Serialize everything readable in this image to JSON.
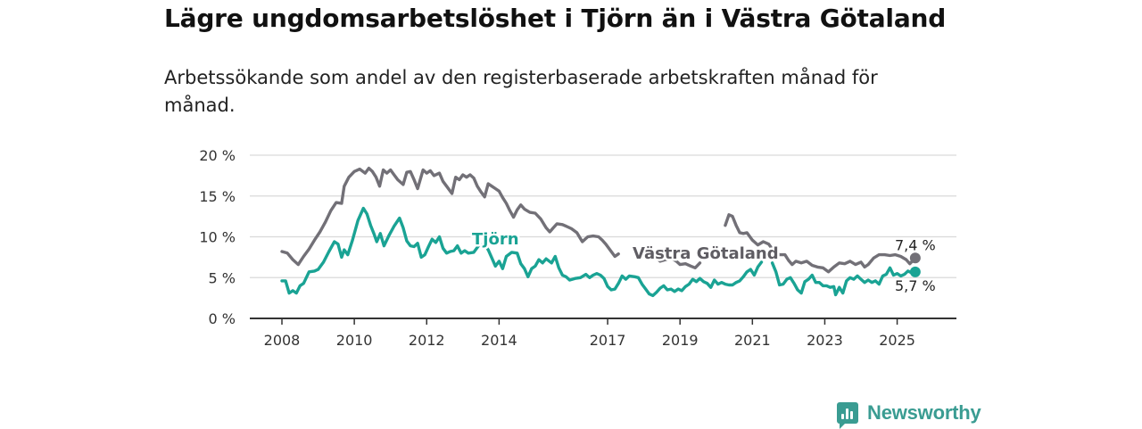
{
  "title": "Lägre ungdomsarbetslöshet i Tjörn än i Västra Götaland",
  "subtitle": "Arbetssökande som andel av den registerbaserade arbetskraften månad för månad.",
  "brand": "Newsworthy",
  "colors": {
    "vg": "#727077",
    "tjorn": "#1aa394",
    "grid": "#d9d9d9",
    "axis": "#333333"
  },
  "chart_data": {
    "type": "line",
    "title": "Lägre ungdomsarbetslöshet i Tjörn än i Västra Götaland",
    "subtitle": "Arbetssökande som andel av den registerbaserade arbetskraften månad för månad.",
    "xlabel": "",
    "ylabel": "",
    "x_range": [
      2008.0,
      2025.75
    ],
    "ylim": [
      0,
      20
    ],
    "y_ticks": [
      0,
      5,
      10,
      15,
      20
    ],
    "y_tick_labels": [
      "0 %",
      "5 %",
      "10 %",
      "15 %",
      "20 %"
    ],
    "x_ticks": [
      2008,
      2010,
      2012,
      2014,
      2017,
      2019,
      2021,
      2023,
      2025
    ],
    "x_tick_labels": [
      "2008",
      "2010",
      "2012",
      "2014",
      "2017",
      "2019",
      "2021",
      "2023",
      "2025"
    ],
    "grid": true,
    "series": [
      {
        "name": "Västra Götaland",
        "color": "#727077",
        "end_label": "7,4 %",
        "points": [
          [
            2008.0,
            8.2
          ],
          [
            2008.15,
            8.0
          ],
          [
            2008.3,
            7.2
          ],
          [
            2008.45,
            6.6
          ],
          [
            2008.6,
            7.6
          ],
          [
            2008.75,
            8.5
          ],
          [
            2008.9,
            9.6
          ],
          [
            2009.05,
            10.6
          ],
          [
            2009.2,
            11.8
          ],
          [
            2009.35,
            13.2
          ],
          [
            2009.5,
            14.2
          ],
          [
            2009.65,
            14.1
          ],
          [
            2009.72,
            16.2
          ],
          [
            2009.85,
            17.3
          ],
          [
            2010.0,
            18.0
          ],
          [
            2010.15,
            18.3
          ],
          [
            2010.3,
            17.8
          ],
          [
            2010.4,
            18.4
          ],
          [
            2010.5,
            18.0
          ],
          [
            2010.6,
            17.3
          ],
          [
            2010.7,
            16.2
          ],
          [
            2010.8,
            18.2
          ],
          [
            2010.9,
            17.8
          ],
          [
            2011.0,
            18.2
          ],
          [
            2011.1,
            17.6
          ],
          [
            2011.2,
            17.0
          ],
          [
            2011.35,
            16.4
          ],
          [
            2011.45,
            17.9
          ],
          [
            2011.55,
            18.0
          ],
          [
            2011.65,
            17.0
          ],
          [
            2011.75,
            15.9
          ],
          [
            2011.9,
            18.2
          ],
          [
            2012.0,
            17.8
          ],
          [
            2012.1,
            18.1
          ],
          [
            2012.2,
            17.5
          ],
          [
            2012.35,
            17.8
          ],
          [
            2012.45,
            16.8
          ],
          [
            2012.55,
            16.2
          ],
          [
            2012.7,
            15.3
          ],
          [
            2012.8,
            17.3
          ],
          [
            2012.9,
            17.0
          ],
          [
            2013.0,
            17.6
          ],
          [
            2013.1,
            17.3
          ],
          [
            2013.2,
            17.6
          ],
          [
            2013.3,
            17.2
          ],
          [
            2013.4,
            16.2
          ],
          [
            2013.5,
            15.5
          ],
          [
            2013.6,
            14.9
          ],
          [
            2013.7,
            16.5
          ],
          [
            2013.8,
            16.2
          ],
          [
            2013.9,
            15.9
          ],
          [
            2014.0,
            15.6
          ],
          [
            2014.1,
            14.8
          ],
          [
            2014.2,
            14.1
          ],
          [
            2014.3,
            13.2
          ],
          [
            2014.4,
            12.4
          ],
          [
            2014.5,
            13.3
          ],
          [
            2014.6,
            13.9
          ],
          [
            2014.7,
            13.4
          ],
          [
            2014.85,
            13.0
          ],
          [
            2015.0,
            12.9
          ],
          [
            2015.15,
            12.2
          ],
          [
            2015.3,
            11.1
          ],
          [
            2015.4,
            10.6
          ],
          [
            2015.5,
            11.1
          ],
          [
            2015.6,
            11.6
          ],
          [
            2015.75,
            11.5
          ],
          [
            2015.9,
            11.2
          ],
          [
            2016.0,
            11.0
          ],
          [
            2016.15,
            10.5
          ],
          [
            2016.3,
            9.4
          ],
          [
            2016.45,
            10.0
          ],
          [
            2016.6,
            10.1
          ],
          [
            2016.75,
            10.0
          ],
          [
            2016.85,
            9.6
          ],
          [
            2016.95,
            9.1
          ],
          [
            2017.1,
            8.2
          ],
          [
            2017.2,
            7.6
          ],
          [
            2017.3,
            7.9
          ]
        ],
        "points_b": [
          [
            2018.3,
            7.6
          ],
          [
            2018.45,
            7.0
          ],
          [
            2018.6,
            7.2
          ],
          [
            2018.75,
            7.4
          ],
          [
            2018.9,
            7.0
          ],
          [
            2019.0,
            6.6
          ],
          [
            2019.15,
            6.7
          ],
          [
            2019.3,
            6.4
          ],
          [
            2019.42,
            6.2
          ],
          [
            2019.55,
            6.8
          ]
        ],
        "points_c": [
          [
            2020.25,
            11.4
          ],
          [
            2020.35,
            12.7
          ],
          [
            2020.45,
            12.5
          ],
          [
            2020.55,
            11.4
          ],
          [
            2020.65,
            10.5
          ],
          [
            2020.75,
            10.4
          ],
          [
            2020.85,
            10.5
          ],
          [
            2021.0,
            9.6
          ],
          [
            2021.15,
            9.0
          ],
          [
            2021.3,
            9.4
          ],
          [
            2021.45,
            9.1
          ],
          [
            2021.6,
            8.2
          ],
          [
            2021.75,
            7.8
          ],
          [
            2021.9,
            7.8
          ],
          [
            2022.0,
            7.1
          ],
          [
            2022.1,
            6.6
          ],
          [
            2022.2,
            7.0
          ],
          [
            2022.35,
            6.8
          ],
          [
            2022.5,
            7.0
          ],
          [
            2022.65,
            6.5
          ],
          [
            2022.8,
            6.3
          ],
          [
            2022.95,
            6.2
          ],
          [
            2023.1,
            5.7
          ],
          [
            2023.25,
            6.3
          ],
          [
            2023.4,
            6.8
          ],
          [
            2023.55,
            6.7
          ],
          [
            2023.7,
            7.0
          ],
          [
            2023.85,
            6.6
          ],
          [
            2024.0,
            6.9
          ],
          [
            2024.1,
            6.3
          ],
          [
            2024.2,
            6.6
          ],
          [
            2024.35,
            7.4
          ],
          [
            2024.5,
            7.8
          ],
          [
            2024.65,
            7.8
          ],
          [
            2024.8,
            7.7
          ],
          [
            2024.95,
            7.8
          ],
          [
            2025.1,
            7.6
          ],
          [
            2025.25,
            7.2
          ],
          [
            2025.35,
            6.7
          ],
          [
            2025.5,
            7.4
          ]
        ]
      },
      {
        "name": "Tjörn",
        "color": "#1aa394",
        "end_label": "5,7 %",
        "points": [
          [
            2008.0,
            4.6
          ],
          [
            2008.1,
            4.6
          ],
          [
            2008.2,
            3.1
          ],
          [
            2008.3,
            3.4
          ],
          [
            2008.4,
            3.1
          ],
          [
            2008.5,
            4.0
          ],
          [
            2008.6,
            4.3
          ],
          [
            2008.75,
            5.7
          ],
          [
            2008.9,
            5.8
          ],
          [
            2009.0,
            6.0
          ],
          [
            2009.15,
            6.9
          ],
          [
            2009.3,
            8.2
          ],
          [
            2009.45,
            9.4
          ],
          [
            2009.55,
            9.1
          ],
          [
            2009.65,
            7.5
          ],
          [
            2009.72,
            8.4
          ],
          [
            2009.82,
            7.8
          ],
          [
            2009.95,
            9.6
          ],
          [
            2010.1,
            12.0
          ],
          [
            2010.25,
            13.5
          ],
          [
            2010.35,
            12.8
          ],
          [
            2010.45,
            11.4
          ],
          [
            2010.55,
            10.3
          ],
          [
            2010.62,
            9.4
          ],
          [
            2010.72,
            10.4
          ],
          [
            2010.82,
            8.9
          ],
          [
            2010.95,
            10.1
          ],
          [
            2011.1,
            11.3
          ],
          [
            2011.25,
            12.3
          ],
          [
            2011.35,
            11.1
          ],
          [
            2011.45,
            9.5
          ],
          [
            2011.55,
            8.9
          ],
          [
            2011.65,
            8.8
          ],
          [
            2011.75,
            9.2
          ],
          [
            2011.85,
            7.5
          ],
          [
            2011.95,
            7.8
          ],
          [
            2012.05,
            8.8
          ],
          [
            2012.15,
            9.7
          ],
          [
            2012.25,
            9.3
          ],
          [
            2012.35,
            10.0
          ],
          [
            2012.45,
            8.6
          ],
          [
            2012.55,
            8.0
          ],
          [
            2012.65,
            8.2
          ],
          [
            2012.75,
            8.3
          ],
          [
            2012.85,
            8.9
          ],
          [
            2012.95,
            8.0
          ],
          [
            2013.05,
            8.3
          ],
          [
            2013.15,
            8.0
          ],
          [
            2013.3,
            8.1
          ],
          [
            2013.45,
            9.0
          ],
          [
            2013.6,
            9.0
          ],
          [
            2013.7,
            8.4
          ],
          [
            2013.8,
            7.4
          ],
          [
            2013.9,
            6.4
          ],
          [
            2014.0,
            7.0
          ],
          [
            2014.1,
            6.1
          ],
          [
            2014.2,
            7.6
          ],
          [
            2014.35,
            8.1
          ],
          [
            2014.5,
            8.0
          ],
          [
            2014.6,
            6.7
          ],
          [
            2014.7,
            6.1
          ],
          [
            2014.8,
            5.1
          ],
          [
            2014.9,
            6.1
          ],
          [
            2015.0,
            6.4
          ],
          [
            2015.1,
            7.2
          ],
          [
            2015.2,
            6.8
          ],
          [
            2015.3,
            7.3
          ],
          [
            2015.45,
            6.8
          ],
          [
            2015.55,
            7.6
          ],
          [
            2015.65,
            6.2
          ],
          [
            2015.75,
            5.3
          ],
          [
            2015.85,
            5.1
          ],
          [
            2015.95,
            4.7
          ],
          [
            2016.1,
            4.9
          ],
          [
            2016.25,
            5.0
          ],
          [
            2016.4,
            5.4
          ],
          [
            2016.5,
            5.0
          ],
          [
            2016.6,
            5.3
          ],
          [
            2016.7,
            5.5
          ],
          [
            2016.8,
            5.3
          ],
          [
            2016.9,
            4.9
          ],
          [
            2017.0,
            3.9
          ],
          [
            2017.1,
            3.5
          ],
          [
            2017.2,
            3.6
          ],
          [
            2017.3,
            4.3
          ],
          [
            2017.4,
            5.2
          ],
          [
            2017.5,
            4.8
          ],
          [
            2017.6,
            5.2
          ],
          [
            2017.75,
            5.1
          ],
          [
            2017.85,
            5.0
          ],
          [
            2017.95,
            4.2
          ],
          [
            2018.05,
            3.6
          ],
          [
            2018.15,
            3.0
          ],
          [
            2018.25,
            2.8
          ],
          [
            2018.35,
            3.2
          ],
          [
            2018.45,
            3.7
          ],
          [
            2018.55,
            4.0
          ],
          [
            2018.65,
            3.5
          ],
          [
            2018.75,
            3.6
          ],
          [
            2018.85,
            3.3
          ],
          [
            2018.95,
            3.6
          ],
          [
            2019.05,
            3.4
          ],
          [
            2019.15,
            3.9
          ],
          [
            2019.25,
            4.2
          ],
          [
            2019.35,
            4.8
          ],
          [
            2019.45,
            4.5
          ],
          [
            2019.55,
            4.9
          ],
          [
            2019.65,
            4.5
          ],
          [
            2019.75,
            4.3
          ],
          [
            2019.85,
            3.8
          ],
          [
            2019.95,
            4.7
          ],
          [
            2020.05,
            4.2
          ],
          [
            2020.15,
            4.4
          ],
          [
            2020.25,
            4.2
          ],
          [
            2020.35,
            4.1
          ],
          [
            2020.45,
            4.1
          ],
          [
            2020.55,
            4.4
          ],
          [
            2020.65,
            4.6
          ],
          [
            2020.75,
            5.1
          ],
          [
            2020.85,
            5.7
          ],
          [
            2020.95,
            6.0
          ],
          [
            2021.05,
            5.3
          ],
          [
            2021.15,
            6.3
          ],
          [
            2021.25,
            6.9
          ]
        ],
        "points_b": [
          [
            2021.55,
            6.8
          ],
          [
            2021.65,
            5.7
          ],
          [
            2021.75,
            4.1
          ],
          [
            2021.85,
            4.2
          ],
          [
            2021.95,
            4.8
          ],
          [
            2022.05,
            5.0
          ],
          [
            2022.15,
            4.3
          ],
          [
            2022.25,
            3.5
          ],
          [
            2022.35,
            3.1
          ],
          [
            2022.45,
            4.5
          ],
          [
            2022.55,
            4.8
          ],
          [
            2022.65,
            5.3
          ],
          [
            2022.75,
            4.4
          ],
          [
            2022.85,
            4.4
          ],
          [
            2022.95,
            4.0
          ],
          [
            2023.05,
            4.0
          ],
          [
            2023.15,
            3.8
          ],
          [
            2023.25,
            3.9
          ],
          [
            2023.3,
            2.9
          ],
          [
            2023.4,
            3.8
          ],
          [
            2023.5,
            3.1
          ],
          [
            2023.6,
            4.6
          ],
          [
            2023.7,
            5.0
          ],
          [
            2023.8,
            4.8
          ],
          [
            2023.9,
            5.2
          ],
          [
            2024.0,
            4.8
          ],
          [
            2024.1,
            4.4
          ],
          [
            2024.2,
            4.7
          ],
          [
            2024.3,
            4.4
          ],
          [
            2024.4,
            4.6
          ],
          [
            2024.5,
            4.2
          ],
          [
            2024.6,
            5.2
          ],
          [
            2024.7,
            5.4
          ],
          [
            2024.8,
            6.2
          ],
          [
            2024.9,
            5.3
          ],
          [
            2025.0,
            5.5
          ],
          [
            2025.1,
            5.2
          ],
          [
            2025.2,
            5.4
          ],
          [
            2025.3,
            5.8
          ],
          [
            2025.4,
            5.6
          ],
          [
            2025.5,
            5.7
          ]
        ]
      }
    ],
    "annotations": [
      {
        "text": "Tjörn",
        "series": "Tjörn"
      },
      {
        "text": "Västra Götaland",
        "series": "Västra Götaland"
      }
    ]
  }
}
